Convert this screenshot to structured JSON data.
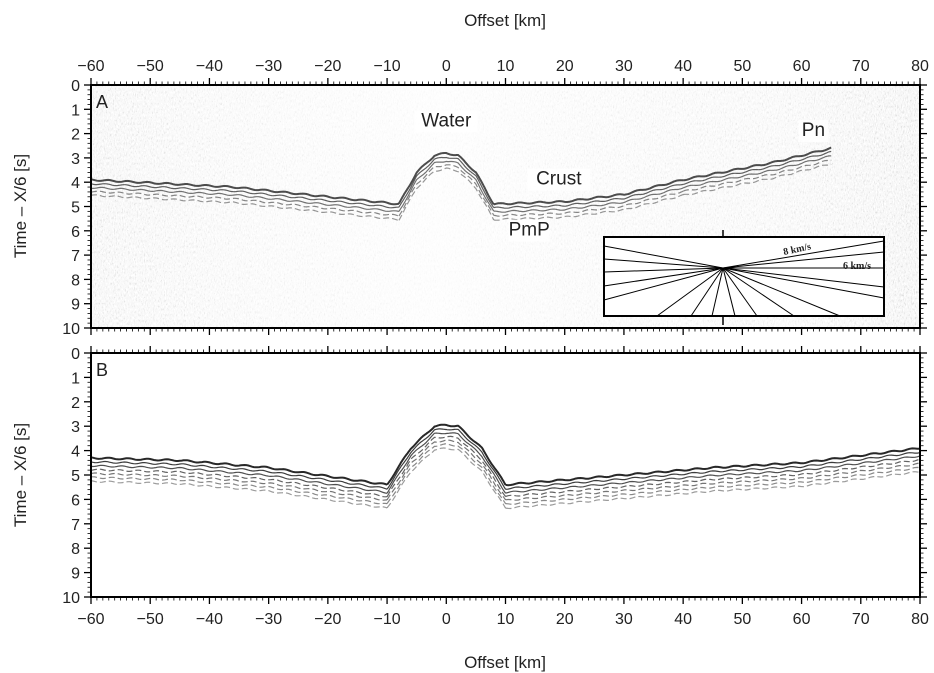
{
  "chart_data": [
    {
      "panel": "A",
      "type": "seismic-section",
      "panel_label": "A",
      "xlabel": "Offset [km]",
      "ylabel": "Time – X/6 [s]",
      "xlim": [
        -60,
        80
      ],
      "ylim": [
        0,
        10
      ],
      "y_inverted": true,
      "x_ticks": [
        "−60",
        "−50",
        "−40",
        "−30",
        "−20",
        "−10",
        "0",
        "10",
        "20",
        "30",
        "40",
        "50",
        "60",
        "70",
        "80"
      ],
      "y_ticks": [
        "0",
        "1",
        "2",
        "3",
        "4",
        "5",
        "6",
        "7",
        "8",
        "9",
        "10"
      ],
      "annotations": [
        {
          "text": "Water",
          "x": 0,
          "y": 1.7
        },
        {
          "text": "Crust",
          "x": 19,
          "y": 4.1
        },
        {
          "text": "Pn",
          "x": 62,
          "y": 2.1
        },
        {
          "text": "PmP",
          "x": 14,
          "y": 6.2
        }
      ],
      "arrivals": [
        {
          "phase": "water",
          "points": [
            [
              -8,
              4.9
            ],
            [
              -5,
              3.6
            ],
            [
              -2,
              2.9
            ],
            [
              0,
              2.8
            ],
            [
              2,
              2.9
            ],
            [
              5,
              3.6
            ],
            [
              8,
              4.9
            ]
          ]
        },
        {
          "phase": "crust-left",
          "points": [
            [
              -8,
              4.9
            ],
            [
              -20,
              4.6
            ],
            [
              -36,
              4.2
            ],
            [
              -60,
              3.9
            ]
          ]
        },
        {
          "phase": "crust-right",
          "points": [
            [
              8,
              4.9
            ],
            [
              20,
              4.8
            ],
            [
              30,
              4.5
            ],
            [
              40,
              3.9
            ]
          ]
        },
        {
          "phase": "Pn",
          "points": [
            [
              40,
              3.9
            ],
            [
              55,
              3.2
            ],
            [
              65,
              2.6
            ]
          ]
        }
      ],
      "inset": {
        "labels": [
          "8 km/s",
          "6 km/s"
        ]
      }
    },
    {
      "panel": "B",
      "type": "seismic-section",
      "panel_label": "B",
      "xlabel": "Offset [km]",
      "ylabel": "Time – X/6 [s]",
      "xlim": [
        -60,
        80
      ],
      "ylim": [
        0,
        10
      ],
      "y_inverted": true,
      "x_ticks": [
        "−60",
        "−50",
        "−40",
        "−30",
        "−20",
        "−10",
        "0",
        "10",
        "20",
        "30",
        "40",
        "50",
        "60",
        "70",
        "80"
      ],
      "y_ticks": [
        "0",
        "1",
        "2",
        "3",
        "4",
        "5",
        "6",
        "7",
        "8",
        "9",
        "10"
      ],
      "arrivals": [
        {
          "phase": "water",
          "points": [
            [
              -10,
              5.4
            ],
            [
              -6,
              3.9
            ],
            [
              -2,
              3.0
            ],
            [
              0,
              2.95
            ],
            [
              2,
              3.0
            ],
            [
              6,
              3.9
            ],
            [
              10,
              5.4
            ]
          ]
        },
        {
          "phase": "crust-left",
          "points": [
            [
              -10,
              5.4
            ],
            [
              -30,
              4.7
            ],
            [
              -45,
              4.4
            ],
            [
              -60,
              4.3
            ]
          ]
        },
        {
          "phase": "crust-right",
          "points": [
            [
              10,
              5.4
            ],
            [
              30,
              5.0
            ],
            [
              45,
              4.7
            ],
            [
              60,
              4.5
            ],
            [
              80,
              3.9
            ]
          ]
        }
      ]
    }
  ]
}
